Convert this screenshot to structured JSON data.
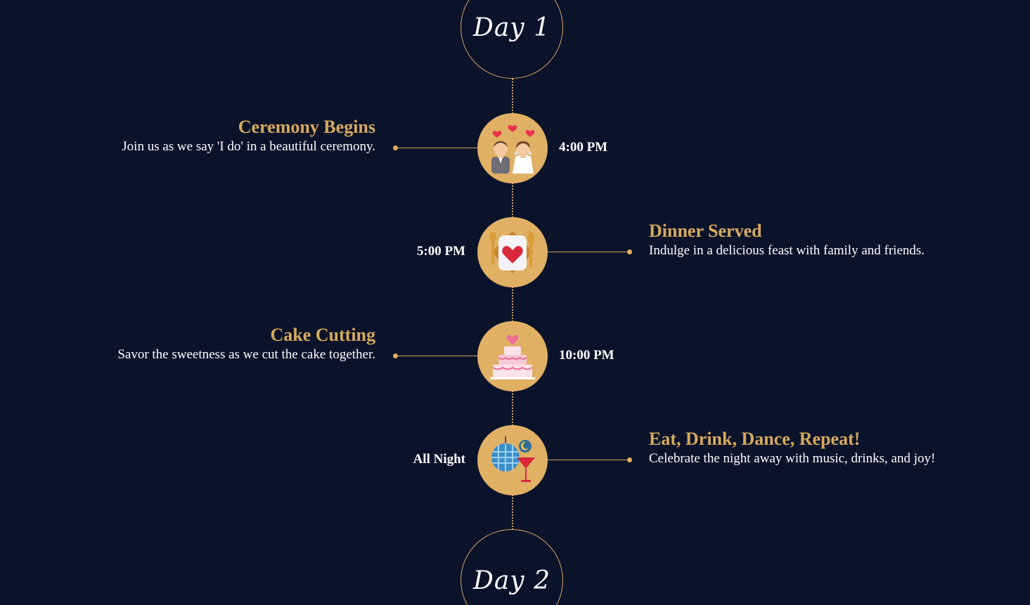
{
  "days": [
    {
      "label": "Day 1"
    },
    {
      "label": "Day 2"
    }
  ],
  "events": [
    {
      "time": "4:00 PM",
      "title": "Ceremony Begins",
      "description": "Join us as we say 'I do' in a beautiful ceremony.",
      "icon": "couple-icon"
    },
    {
      "time": "5:00 PM",
      "title": "Dinner Served",
      "description": "Indulge in a delicious feast with family and friends.",
      "icon": "dinner-plate-icon"
    },
    {
      "time": "10:00 PM",
      "title": "Cake Cutting",
      "description": "Savor the sweetness as we cut the cake together.",
      "icon": "wedding-cake-icon"
    },
    {
      "time": "All Night",
      "title": "Eat, Drink, Dance, Repeat!",
      "description": "Celebrate the night away with music, drinks, and joy!",
      "icon": "disco-cocktail-icon"
    }
  ],
  "colors": {
    "background": "#0b132b",
    "accent": "#e0b065",
    "title": "#d6a95c",
    "text": "#ffffff"
  }
}
